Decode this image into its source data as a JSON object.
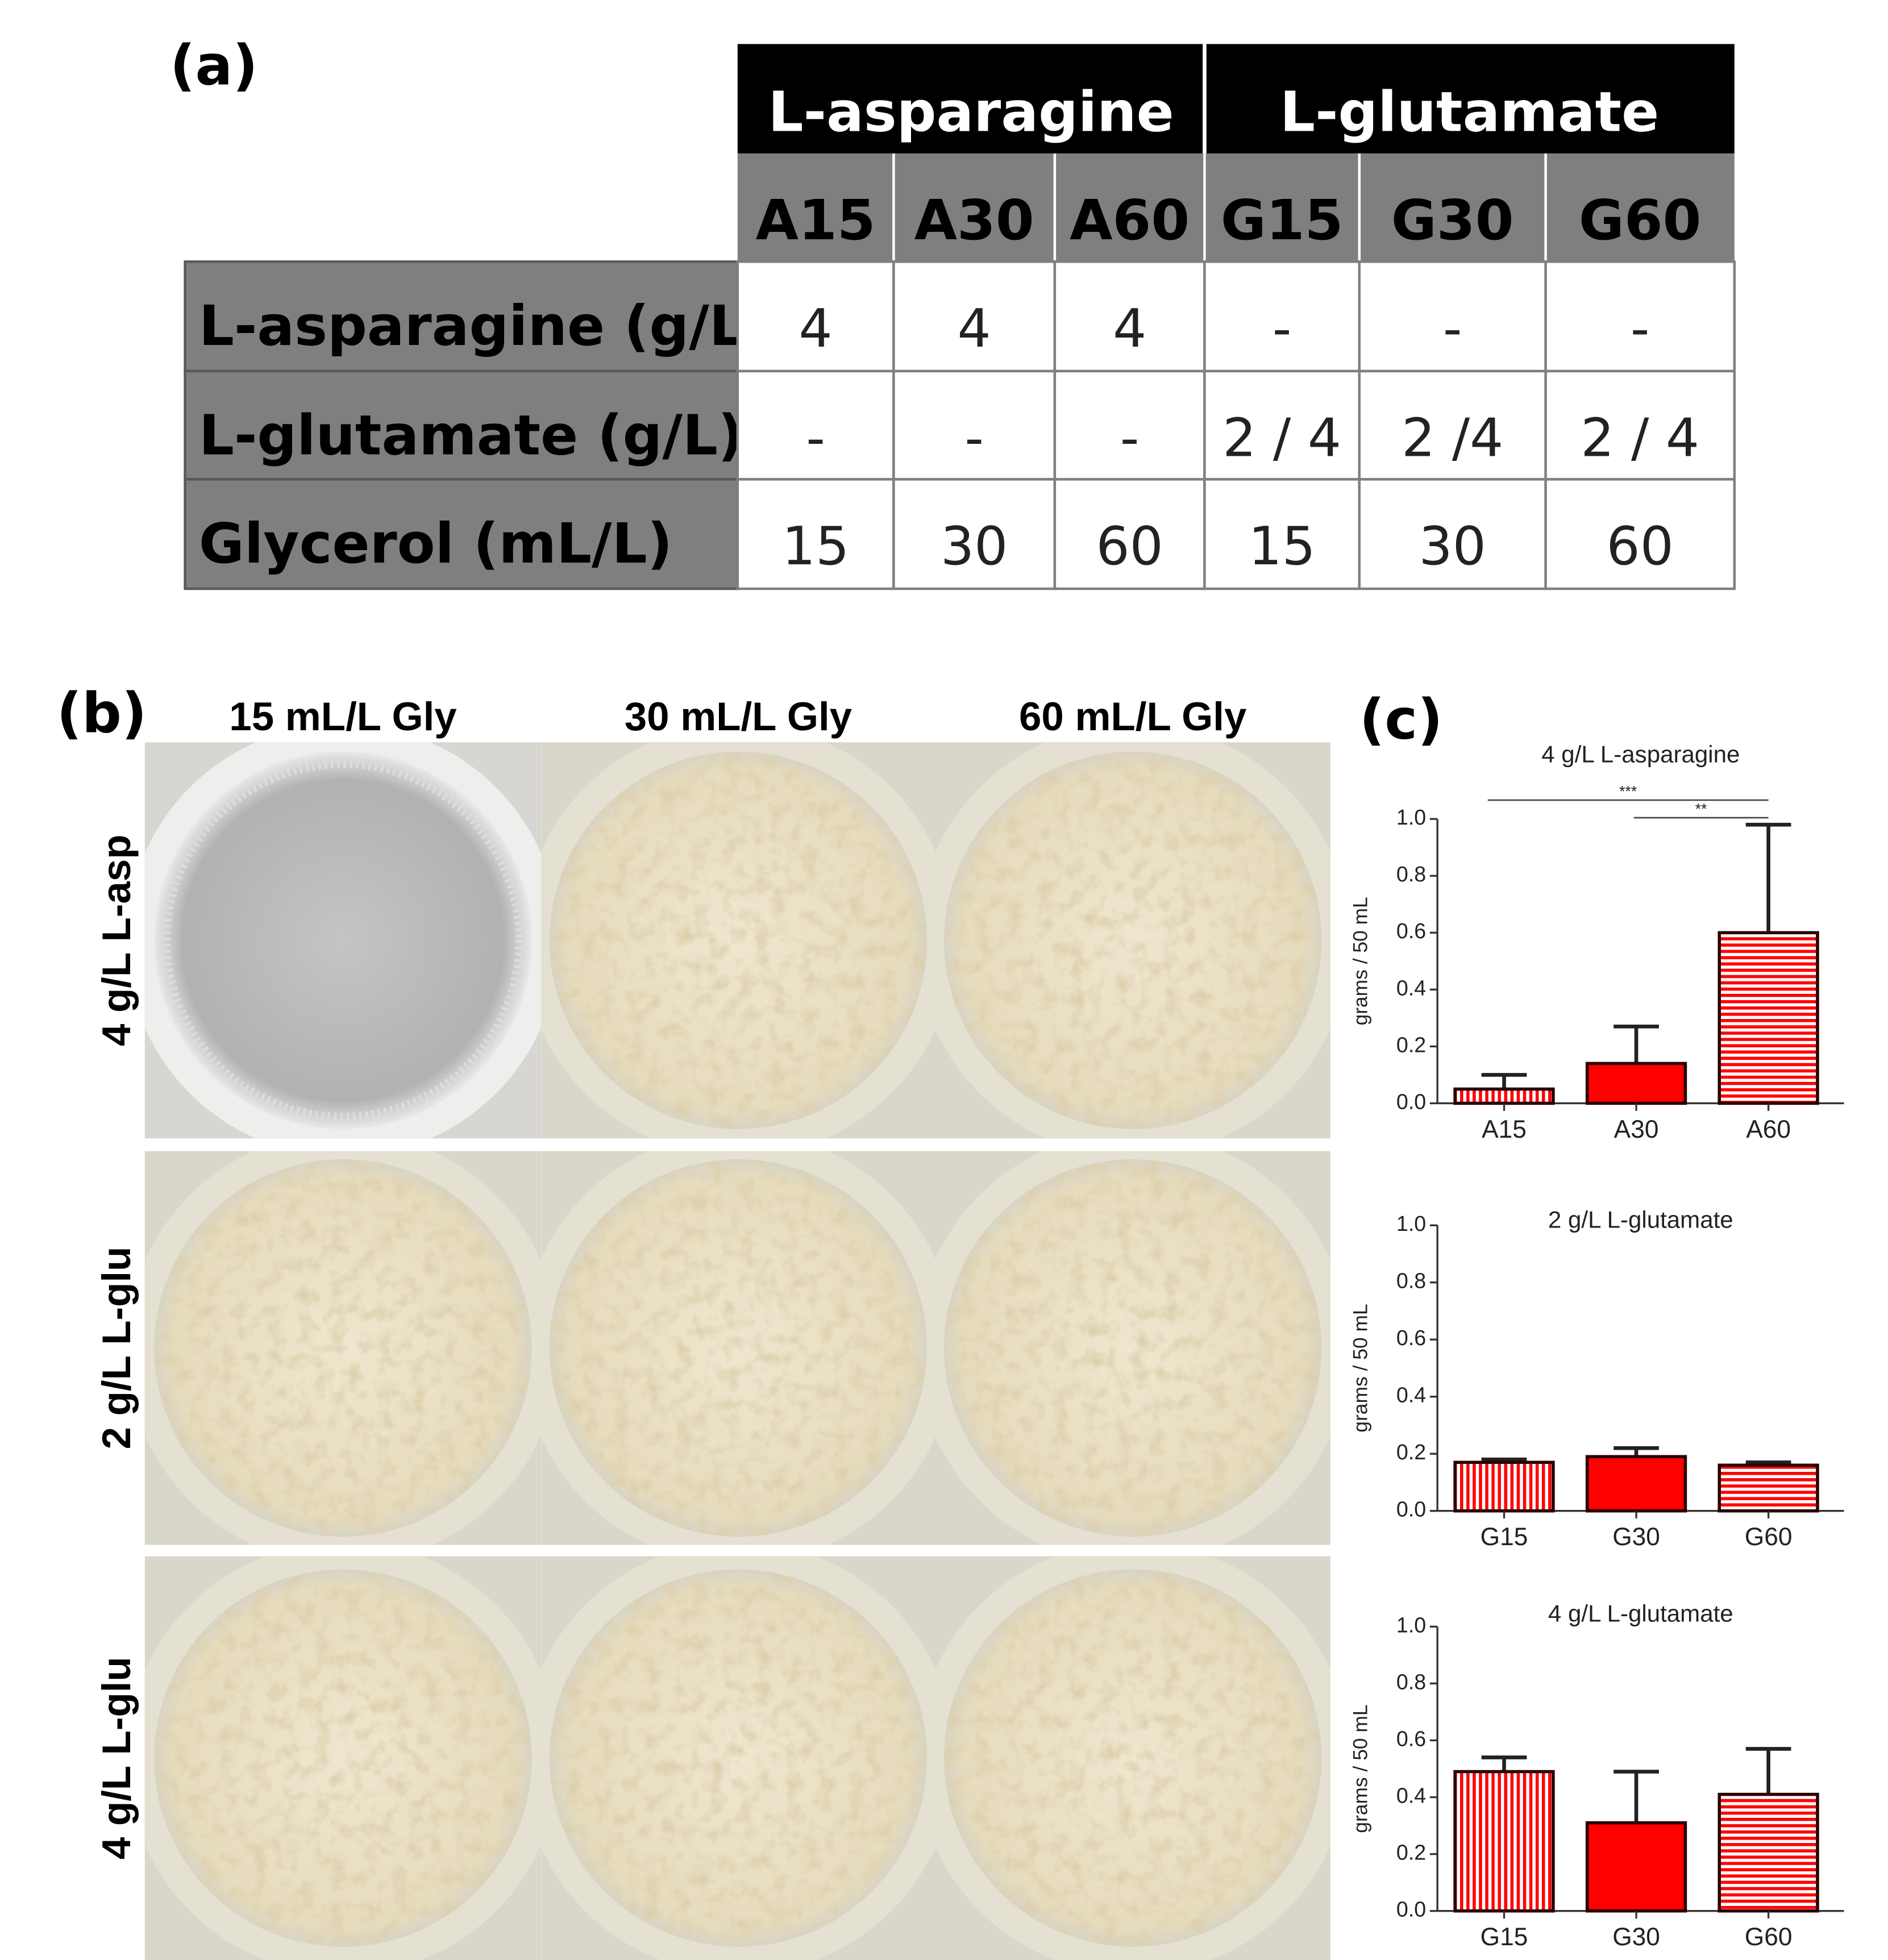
{
  "panel_a": {
    "label": "(a)",
    "groups": [
      "L-asparagine",
      "L-glutamate"
    ],
    "columns": [
      "A15",
      "A30",
      "A60",
      "G15",
      "G30",
      "G60"
    ],
    "rows": [
      {
        "label": "L-asparagine (g/L)",
        "cells": [
          4,
          4,
          4,
          "-",
          "-",
          "-"
        ]
      },
      {
        "label": "L-glutamate (g/L)",
        "cells": [
          "-",
          "-",
          "-",
          "2 / 4",
          "2 /4",
          "2 / 4"
        ]
      },
      {
        "label": "Glycerol (mL/L)",
        "cells": [
          15,
          30,
          60,
          15,
          30,
          60
        ]
      }
    ]
  },
  "panel_b": {
    "label": "(b)",
    "columns": [
      "15 mL/L Gly",
      "30 mL/L Gly",
      "60 mL/L Gly"
    ],
    "rows": [
      "4 g/L L-asp",
      "2 g/L L-glu",
      "4 g/L L-glu"
    ]
  },
  "panel_c_label": "(c)",
  "chart_data": [
    {
      "type": "bar",
      "title": "4 g/L L-asparagine",
      "y_label": "grams / 50 mL",
      "categories": [
        "A15",
        "A30",
        "A60"
      ],
      "values": [
        0.05,
        0.14,
        0.6
      ],
      "errors": [
        0.05,
        0.13,
        0.38
      ],
      "color": "#ff0000",
      "patterns": [
        "vertical",
        "solid",
        "horizontal"
      ],
      "ylim": [
        0,
        1
      ],
      "yticks": [
        {
          "value": 0,
          "label": "0.0"
        },
        {
          "value": 0.2,
          "label": "0.2"
        },
        {
          "value": 0.4,
          "label": "0.4"
        },
        {
          "value": 0.6,
          "label": "0.6"
        },
        {
          "value": 0.8,
          "label": "0.8"
        },
        {
          "value": 1,
          "label": "1.0"
        }
      ],
      "annotations": [
        "***",
        "**"
      ]
    },
    {
      "type": "bar",
      "title": "2 g/L L-glutamate",
      "y_label": "grams / 50 mL",
      "categories": [
        "G15",
        "G30",
        "G60"
      ],
      "values": [
        0.17,
        0.19,
        0.16
      ],
      "errors": [
        0.01,
        0.03,
        0.01
      ],
      "color": "#ff0000",
      "patterns": [
        "vertical",
        "solid",
        "horizontal"
      ],
      "ylim": [
        0,
        1
      ],
      "yticks": [
        {
          "value": 0,
          "label": "0.0"
        },
        {
          "value": 0.2,
          "label": "0.2"
        },
        {
          "value": 0.4,
          "label": "0.4"
        },
        {
          "value": 0.6,
          "label": "0.6"
        },
        {
          "value": 0.8,
          "label": "0.8"
        },
        {
          "value": 1,
          "label": "1.0"
        }
      ]
    },
    {
      "type": "bar",
      "title": "4 g/L L-glutamate",
      "y_label": "grams / 50 mL",
      "categories": [
        "G15",
        "G30",
        "G60"
      ],
      "values": [
        0.49,
        0.31,
        0.41
      ],
      "errors": [
        0.05,
        0.18,
        0.16
      ],
      "color": "#ff0000",
      "patterns": [
        "vertical",
        "solid",
        "horizontal"
      ],
      "ylim": [
        0,
        1
      ],
      "yticks": [
        {
          "value": 0,
          "label": "0.0"
        },
        {
          "value": 0.2,
          "label": "0.2"
        },
        {
          "value": 0.4,
          "label": "0.4"
        },
        {
          "value": 0.6,
          "label": "0.6"
        },
        {
          "value": 0.8,
          "label": "0.8"
        },
        {
          "value": 1,
          "label": "1.0"
        }
      ]
    }
  ]
}
